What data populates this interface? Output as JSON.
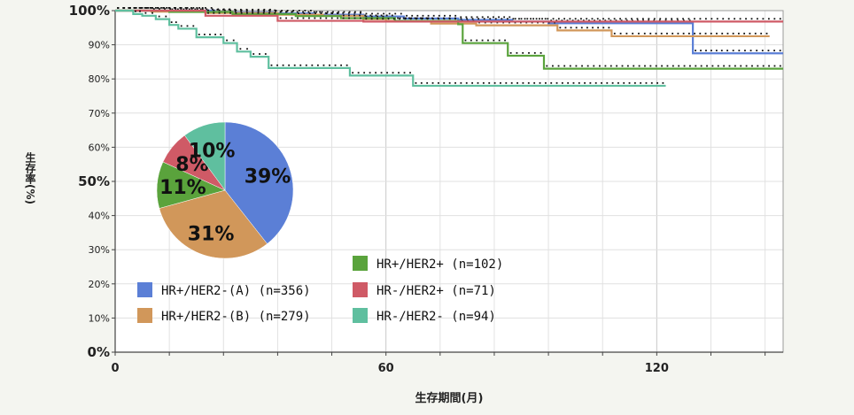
{
  "chart_data": [
    {
      "type": "line",
      "xlabel": "生存期間(月)",
      "ylabel": "生存率(%)",
      "xlim": [
        0,
        148
      ],
      "ylim": [
        0,
        100
      ],
      "x_ticks": [
        "0",
        "60",
        "120"
      ],
      "y_ticks": [
        "0%",
        "10%",
        "20%",
        "30%",
        "40%",
        "50%",
        "60%",
        "70%",
        "80%",
        "90%",
        "100%"
      ],
      "grid": true,
      "legend_position": "bottom-right",
      "series": [
        {
          "name": "HR+/HER2-(A) (n=356)",
          "color": "#5b7fd6",
          "x": [
            0,
            14,
            22,
            35,
            44,
            55,
            64,
            76,
            88,
            96,
            108,
            120,
            128,
            135,
            148
          ],
          "y": [
            100,
            100,
            99.5,
            99.2,
            98.8,
            98.3,
            97.7,
            97.3,
            96.8,
            96.3,
            96.3,
            96.3,
            87.5,
            87.5,
            87.5
          ]
        },
        {
          "name": "HR+/HER2-(B) (n=279)",
          "color": "#d1975a",
          "x": [
            0,
            8,
            20,
            36,
            46,
            55,
            60,
            70,
            80,
            88,
            98,
            110,
            118,
            140,
            145
          ],
          "y": [
            100,
            99.7,
            99.3,
            98.8,
            98.5,
            97.5,
            97,
            96.2,
            95.7,
            95.7,
            94.2,
            92.5,
            92.5,
            92.5,
            92.5
          ]
        },
        {
          "name": "HR+/HER2+ (n=102)",
          "color": "#5aa33c",
          "x": [
            0,
            12,
            26,
            40,
            50,
            62,
            76,
            77,
            87,
            95,
            108,
            148
          ],
          "y": [
            100,
            99.6,
            99,
            98.4,
            97.8,
            97,
            96,
            90.5,
            86.8,
            83,
            83,
            83
          ]
        },
        {
          "name": "HR-/HER2+ (n=71)",
          "color": "#cf5a66",
          "x": [
            0,
            20,
            36,
            55,
            76,
            94,
            110,
            148
          ],
          "y": [
            100,
            98.5,
            97,
            96.8,
            96.8,
            96.8,
            96.8,
            96.8
          ]
        },
        {
          "name": "HR-/HER2- (n=94)",
          "color": "#5fbf9f",
          "x": [
            0,
            4,
            6,
            9,
            12,
            14,
            18,
            24,
            27,
            30,
            34,
            52,
            66,
            96,
            122
          ],
          "y": [
            100,
            99,
            98.5,
            97.5,
            95.8,
            94.7,
            92.2,
            90.5,
            88,
            86.5,
            83.2,
            81,
            78,
            78,
            78
          ]
        }
      ]
    },
    {
      "type": "pie",
      "labels": [
        "HR+/HER2-(A)",
        "HR+/HER2-(B)",
        "HR+/HER2+",
        "HR-/HER2+",
        "HR-/HER2-"
      ],
      "values": [
        39,
        31,
        11,
        8,
        10
      ],
      "value_labels": [
        "39%",
        "31%",
        "11%",
        "8%",
        "10%"
      ],
      "colors": [
        "#5b7fd6",
        "#d1975a",
        "#5aa33c",
        "#cf5a66",
        "#5fbf9f"
      ]
    }
  ]
}
